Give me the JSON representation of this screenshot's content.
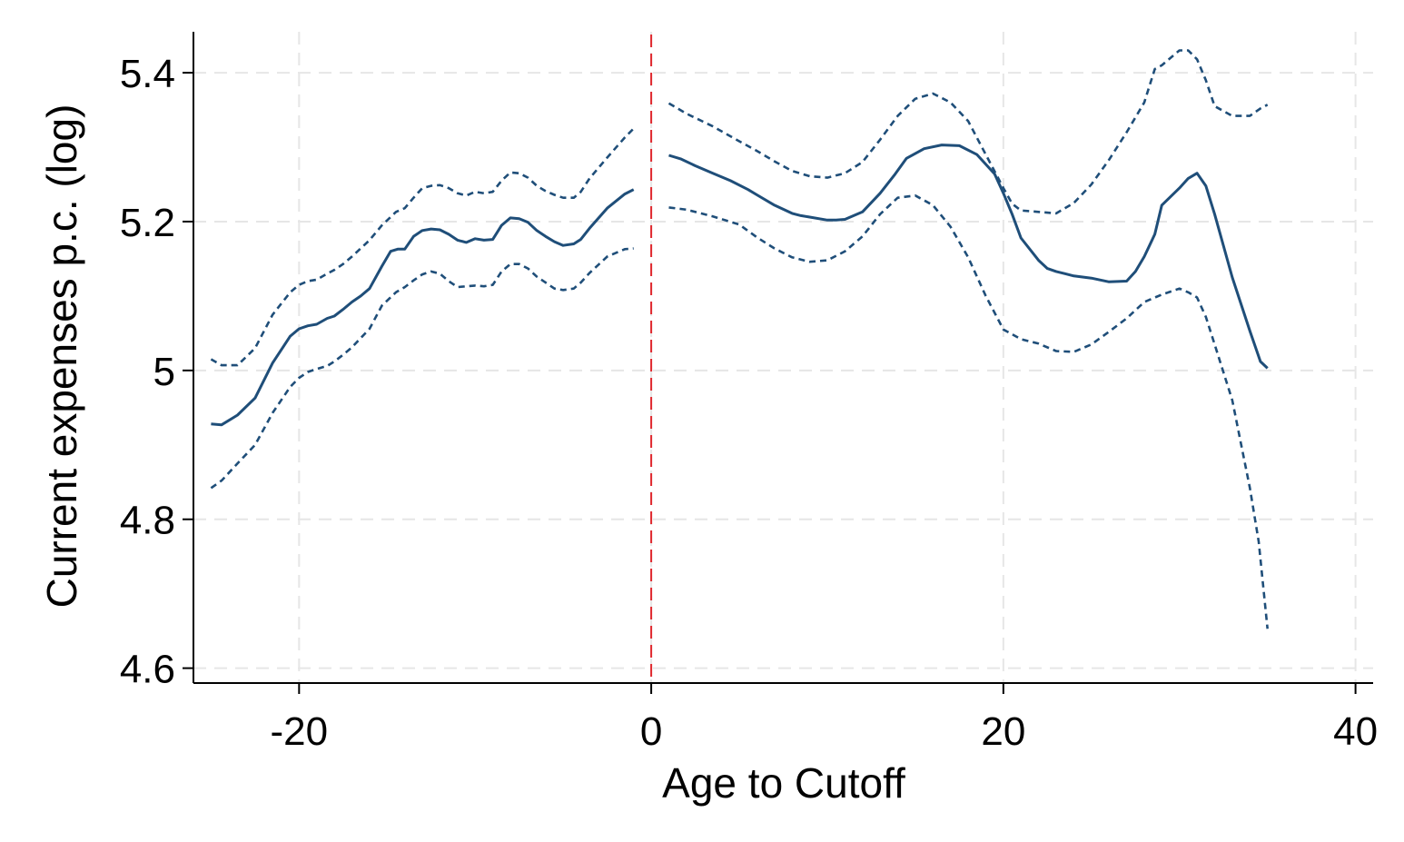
{
  "chart_data": {
    "type": "line",
    "title": "",
    "xlabel": "Age to Cutoff",
    "ylabel": "Current expenses p.c. (log)",
    "xlim": [
      -26,
      41
    ],
    "ylim": [
      4.58,
      5.455
    ],
    "xticks": [
      -20,
      0,
      20,
      40
    ],
    "yticks": [
      4.6,
      4.8,
      5,
      5.2,
      5.4
    ],
    "xtick_labels": [
      "-20",
      "0",
      "20",
      "40"
    ],
    "ytick_labels": [
      "4.6",
      "4.8",
      "5",
      "5.2",
      "5.4"
    ],
    "grid": true,
    "legend": "none",
    "cutoff_line": {
      "x": 0,
      "color": "#e0282e",
      "style": "dashed"
    },
    "colors": {
      "series": "#1f4e79",
      "grid": "#e6e6e6"
    },
    "series": [
      {
        "role": "estimate",
        "style": "solid",
        "segment": "left",
        "x": [
          -25,
          -24.4,
          -23.5,
          -22.5,
          -21.5,
          -20.5,
          -20,
          -19.5,
          -19,
          -18.4,
          -18,
          -17.5,
          -17,
          -16.5,
          -16,
          -15.3,
          -14.8,
          -14.4,
          -14,
          -13.5,
          -13,
          -12.5,
          -12,
          -11.5,
          -11,
          -10.5,
          -10,
          -9.5,
          -9,
          -8.5,
          -8,
          -7.5,
          -7,
          -6.5,
          -6,
          -5.5,
          -5,
          -4.4,
          -4,
          -3.5,
          -2.5,
          -1.5,
          -1
        ],
        "y": [
          4.928,
          4.927,
          4.94,
          4.963,
          5.01,
          5.046,
          5.056,
          5.06,
          5.062,
          5.07,
          5.073,
          5.082,
          5.092,
          5.1,
          5.11,
          5.14,
          5.16,
          5.163,
          5.163,
          5.18,
          5.188,
          5.19,
          5.189,
          5.183,
          5.175,
          5.172,
          5.177,
          5.175,
          5.176,
          5.195,
          5.205,
          5.204,
          5.199,
          5.188,
          5.18,
          5.173,
          5.168,
          5.17,
          5.176,
          5.191,
          5.218,
          5.237,
          5.243
        ]
      },
      {
        "role": "upper-ci",
        "style": "dashed",
        "segment": "left",
        "x": [
          -25,
          -24.4,
          -23.5,
          -22.5,
          -21.5,
          -20.5,
          -20,
          -19.5,
          -19,
          -18.4,
          -18,
          -17.5,
          -17,
          -16,
          -15.3,
          -14.5,
          -14,
          -13.5,
          -13,
          -12.5,
          -12,
          -11.5,
          -11,
          -10.5,
          -10,
          -9.5,
          -9,
          -8.5,
          -8,
          -7.5,
          -7,
          -6.5,
          -6,
          -5.5,
          -5,
          -4.4,
          -4,
          -3.5,
          -2.5,
          -1.5,
          -1
        ],
        "y": [
          5.015,
          5.007,
          5.007,
          5.03,
          5.075,
          5.105,
          5.115,
          5.12,
          5.122,
          5.13,
          5.135,
          5.143,
          5.153,
          5.175,
          5.195,
          5.213,
          5.218,
          5.232,
          5.245,
          5.248,
          5.249,
          5.245,
          5.238,
          5.235,
          5.24,
          5.238,
          5.24,
          5.255,
          5.266,
          5.265,
          5.259,
          5.248,
          5.241,
          5.236,
          5.232,
          5.232,
          5.24,
          5.258,
          5.286,
          5.313,
          5.325
        ]
      },
      {
        "role": "lower-ci",
        "style": "dashed",
        "segment": "left",
        "x": [
          -25,
          -24.4,
          -23.5,
          -22.5,
          -21.5,
          -20.5,
          -20,
          -19.5,
          -19,
          -18.4,
          -18,
          -17.5,
          -17,
          -16,
          -15.3,
          -14.5,
          -14,
          -13.5,
          -13,
          -12.5,
          -12,
          -11.5,
          -11,
          -10.5,
          -10,
          -9.5,
          -9,
          -8.5,
          -8,
          -7.5,
          -7,
          -6.5,
          -6,
          -5.5,
          -5,
          -4.4,
          -4,
          -3.5,
          -2.5,
          -1.5,
          -1
        ],
        "y": [
          4.842,
          4.852,
          4.875,
          4.9,
          4.943,
          4.978,
          4.99,
          4.998,
          5.002,
          5.006,
          5.012,
          5.021,
          5.031,
          5.056,
          5.087,
          5.105,
          5.112,
          5.121,
          5.129,
          5.133,
          5.13,
          5.12,
          5.112,
          5.113,
          5.114,
          5.113,
          5.115,
          5.133,
          5.143,
          5.143,
          5.137,
          5.126,
          5.118,
          5.11,
          5.108,
          5.11,
          5.118,
          5.131,
          5.153,
          5.163,
          5.164
        ]
      },
      {
        "role": "estimate",
        "style": "solid",
        "segment": "right",
        "x": [
          1,
          1.7,
          2.5,
          3.5,
          4.5,
          5.5,
          6,
          7,
          8,
          8.5,
          9,
          10,
          10.5,
          11,
          12,
          13,
          13.8,
          14.5,
          15.5,
          16.5,
          17.5,
          18.5,
          19.5,
          20,
          20.5,
          21,
          22,
          22.5,
          23,
          23.5,
          24,
          25,
          26,
          27,
          27.5,
          28,
          28.6,
          29,
          30,
          30.5,
          31,
          31.5,
          32,
          33,
          34,
          34.6,
          35
        ],
        "y": [
          5.289,
          5.284,
          5.275,
          5.265,
          5.255,
          5.243,
          5.236,
          5.222,
          5.211,
          5.208,
          5.206,
          5.202,
          5.202,
          5.203,
          5.213,
          5.238,
          5.262,
          5.285,
          5.298,
          5.303,
          5.302,
          5.29,
          5.264,
          5.238,
          5.21,
          5.178,
          5.148,
          5.137,
          5.133,
          5.13,
          5.127,
          5.124,
          5.119,
          5.12,
          5.133,
          5.153,
          5.183,
          5.222,
          5.245,
          5.258,
          5.265,
          5.248,
          5.21,
          5.125,
          5.053,
          5.012,
          5.003
        ]
      },
      {
        "role": "upper-ci",
        "style": "dashed",
        "segment": "right",
        "x": [
          1,
          2,
          3.5,
          5,
          6,
          7,
          8,
          9,
          10,
          11,
          12,
          13,
          14,
          15,
          16,
          17,
          18,
          19,
          20,
          20.5,
          21,
          22,
          23,
          24,
          25,
          26,
          27,
          28,
          28.6,
          29,
          30,
          30.5,
          31,
          31.5,
          32,
          33,
          34,
          34.6,
          35
        ],
        "y": [
          5.359,
          5.345,
          5.328,
          5.308,
          5.295,
          5.281,
          5.268,
          5.261,
          5.259,
          5.265,
          5.28,
          5.31,
          5.342,
          5.365,
          5.372,
          5.36,
          5.335,
          5.29,
          5.245,
          5.224,
          5.215,
          5.213,
          5.211,
          5.225,
          5.25,
          5.283,
          5.32,
          5.36,
          5.405,
          5.41,
          5.43,
          5.43,
          5.418,
          5.39,
          5.355,
          5.342,
          5.342,
          5.352,
          5.357
        ]
      },
      {
        "role": "lower-ci",
        "style": "dashed",
        "segment": "right",
        "x": [
          1,
          2,
          3.5,
          5,
          6,
          7,
          8,
          9,
          10,
          11,
          12,
          13,
          14,
          15,
          16,
          17,
          18,
          19,
          20,
          21,
          22,
          23,
          24,
          25,
          26,
          27,
          28,
          29,
          30,
          30.5,
          31,
          31.5,
          32,
          33,
          34,
          34.5,
          35
        ],
        "y": [
          5.219,
          5.216,
          5.207,
          5.196,
          5.179,
          5.164,
          5.152,
          5.146,
          5.148,
          5.16,
          5.18,
          5.21,
          5.232,
          5.235,
          5.222,
          5.193,
          5.152,
          5.1,
          5.055,
          5.042,
          5.036,
          5.026,
          5.025,
          5.035,
          5.052,
          5.07,
          5.092,
          5.102,
          5.11,
          5.105,
          5.098,
          5.072,
          5.035,
          4.96,
          4.842,
          4.77,
          4.653
        ]
      }
    ]
  }
}
